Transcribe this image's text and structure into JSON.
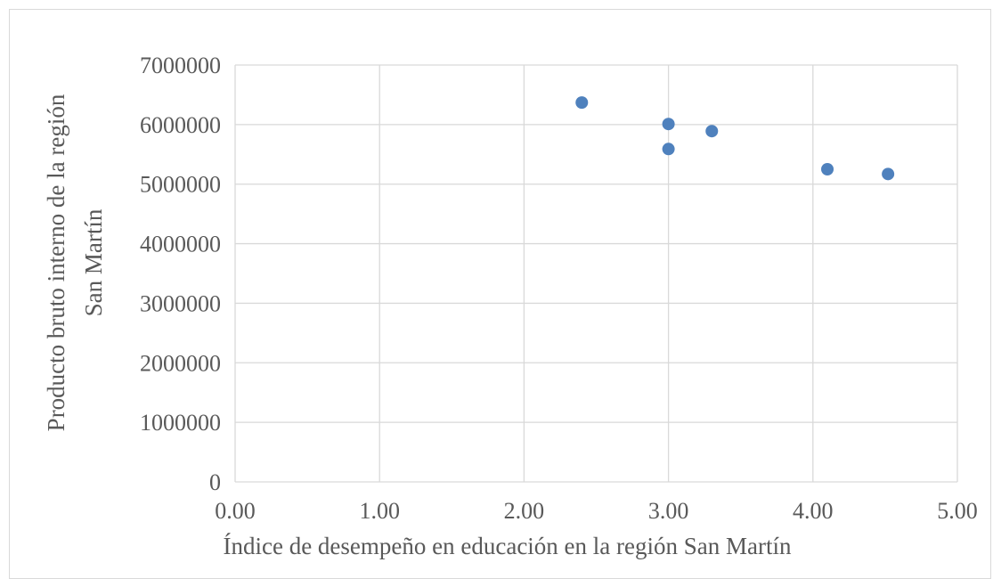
{
  "chart_data": {
    "type": "scatter",
    "title": "",
    "xlabel": "Índice de desempeño en educación en la región San Martín",
    "ylabel_lines": [
      "Producto bruto interno de la región",
      "San Martín"
    ],
    "xlim": [
      0,
      5
    ],
    "ylim": [
      0,
      7000000
    ],
    "x_ticks": [
      "0.00",
      "1.00",
      "2.00",
      "3.00",
      "4.00",
      "5.00"
    ],
    "y_ticks": [
      "0",
      "1000000",
      "2000000",
      "3000000",
      "4000000",
      "5000000",
      "6000000",
      "7000000"
    ],
    "grid": true,
    "legend": "none",
    "marker_color": "#4f81bd",
    "points": [
      {
        "x": 2.4,
        "y": 6370000
      },
      {
        "x": 3.0,
        "y": 6010000
      },
      {
        "x": 3.0,
        "y": 5590000
      },
      {
        "x": 3.3,
        "y": 5890000
      },
      {
        "x": 4.1,
        "y": 5250000
      },
      {
        "x": 4.52,
        "y": 5170000
      }
    ]
  }
}
